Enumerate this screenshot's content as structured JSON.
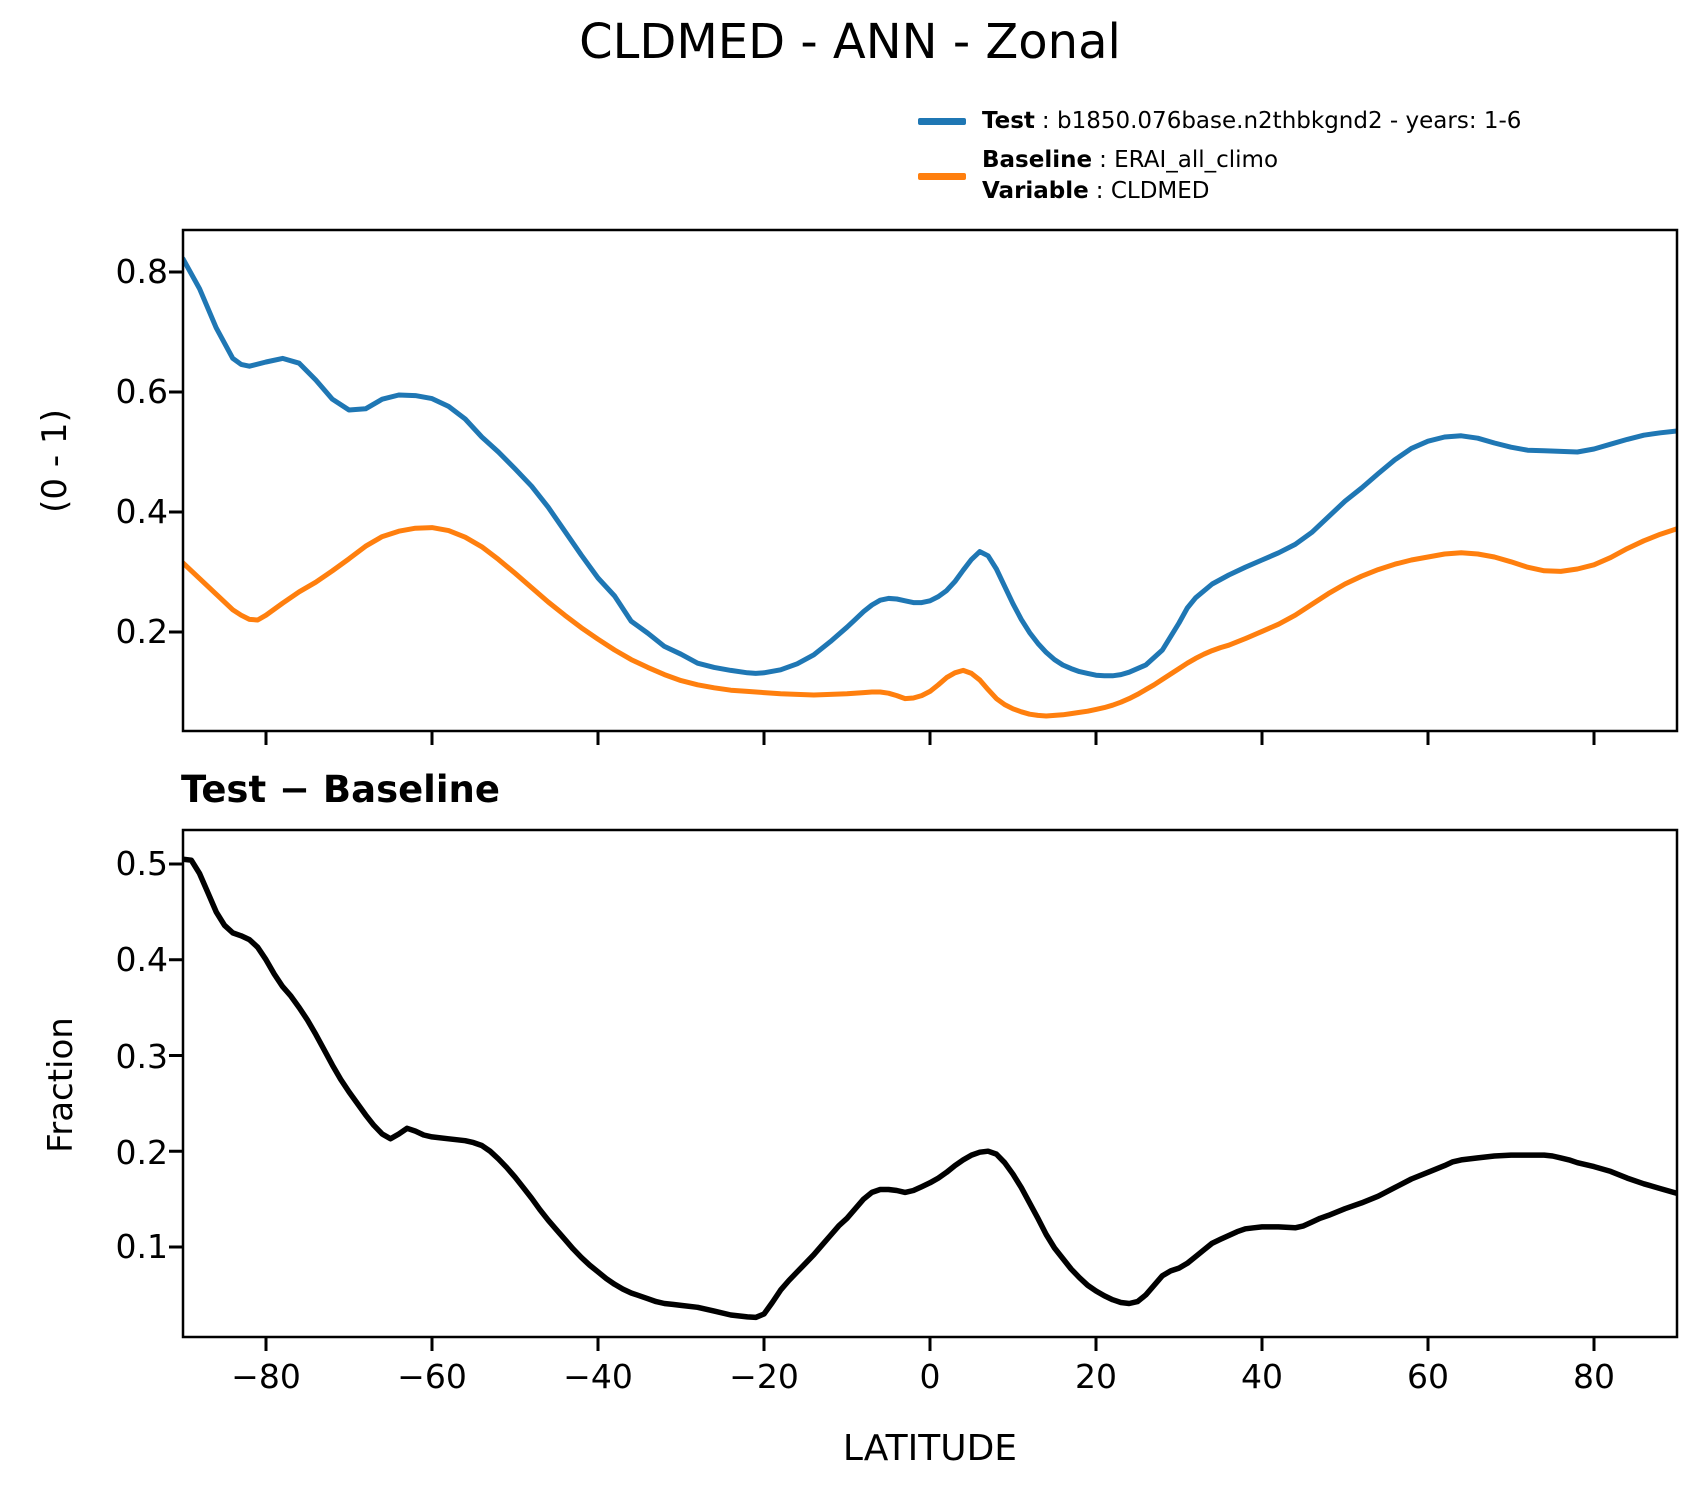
{
  "title": "CLDMED - ANN - Zonal",
  "legend": {
    "test": {
      "key": "Test",
      "value": ": b1850.076base.n2thbkgnd2 - years: 1-6"
    },
    "baseline": {
      "key": "Baseline",
      "value": ": ERAI_all_climo"
    },
    "variable": {
      "key": "Variable",
      "value": ": CLDMED"
    }
  },
  "subtitle": "Test − Baseline",
  "axis_text": {
    "top_ylabel": "(0 - 1)",
    "bottom_ylabel": "Fraction",
    "xlabel": "LATITUDE",
    "top_yticks": [
      "0.8",
      "0.6",
      "0.4",
      "0.2"
    ],
    "bottom_yticks": [
      "0.5",
      "0.4",
      "0.3",
      "0.2",
      "0.1"
    ],
    "xticks": [
      "−80",
      "−60",
      "−40",
      "−20",
      "0",
      "20",
      "40",
      "60",
      "80"
    ]
  },
  "colors": {
    "test": "#1f77b4",
    "baseline": "#ff7f0e",
    "difference": "#000000"
  },
  "chart_data": [
    {
      "type": "line",
      "title": "CLDMED - ANN - Zonal",
      "xlabel": "LATITUDE",
      "ylabel": "(0 - 1)",
      "xlim": [
        -90,
        90
      ],
      "ylim": [
        0.035,
        0.87
      ],
      "xticks": [
        -80,
        -60,
        -40,
        -20,
        0,
        20,
        40,
        60,
        80
      ],
      "yticks": [
        0.2,
        0.4,
        0.6,
        0.8
      ],
      "grid": false,
      "legend_position": "upper right outside",
      "series": [
        {
          "name": "Test",
          "label": "b1850.076base.n2thbkgnd2 - years: 1-6",
          "color": "#1f77b4",
          "x": [
            -90,
            -88,
            -86,
            -84,
            -83,
            -82,
            -80,
            -78,
            -76,
            -74,
            -72,
            -70,
            -68,
            -66,
            -64,
            -62,
            -60,
            -58,
            -56,
            -54,
            -52,
            -50,
            -48,
            -46,
            -44,
            -42,
            -40,
            -38,
            -36,
            -34,
            -32,
            -30,
            -28,
            -26,
            -24,
            -22,
            -21,
            -20,
            -18,
            -16,
            -14,
            -12,
            -10,
            -9,
            -8,
            -7,
            -6,
            -5,
            -4,
            -3,
            -2,
            -1,
            0,
            1,
            2,
            3,
            4,
            5,
            6,
            7,
            8,
            9,
            10,
            11,
            12,
            13,
            14,
            15,
            16,
            17,
            18,
            19,
            20,
            21,
            22,
            23,
            24,
            26,
            28,
            30,
            31,
            32,
            34,
            36,
            38,
            40,
            42,
            44,
            46,
            48,
            50,
            52,
            54,
            56,
            58,
            60,
            62,
            64,
            66,
            68,
            70,
            72,
            74,
            76,
            78,
            80,
            82,
            84,
            86,
            88,
            90
          ],
          "y": [
            0.822,
            0.772,
            0.707,
            0.656,
            0.646,
            0.643,
            0.65,
            0.656,
            0.648,
            0.62,
            0.588,
            0.57,
            0.572,
            0.588,
            0.595,
            0.594,
            0.589,
            0.576,
            0.555,
            0.525,
            0.5,
            0.472,
            0.443,
            0.408,
            0.368,
            0.328,
            0.29,
            0.26,
            0.218,
            0.198,
            0.176,
            0.163,
            0.148,
            0.141,
            0.136,
            0.132,
            0.131,
            0.132,
            0.137,
            0.147,
            0.162,
            0.184,
            0.208,
            0.221,
            0.234,
            0.245,
            0.253,
            0.256,
            0.255,
            0.252,
            0.249,
            0.249,
            0.252,
            0.259,
            0.269,
            0.284,
            0.303,
            0.321,
            0.334,
            0.327,
            0.305,
            0.276,
            0.247,
            0.221,
            0.199,
            0.181,
            0.166,
            0.154,
            0.145,
            0.139,
            0.134,
            0.131,
            0.128,
            0.127,
            0.127,
            0.129,
            0.133,
            0.145,
            0.17,
            0.215,
            0.24,
            0.257,
            0.28,
            0.295,
            0.308,
            0.32,
            0.332,
            0.346,
            0.366,
            0.392,
            0.418,
            0.44,
            0.464,
            0.487,
            0.506,
            0.518,
            0.525,
            0.527,
            0.523,
            0.515,
            0.508,
            0.503,
            0.502,
            0.501,
            0.5,
            0.505,
            0.513,
            0.521,
            0.528,
            0.532,
            0.535
          ]
        },
        {
          "name": "Baseline",
          "label": "ERAI_all_climo",
          "color": "#ff7f0e",
          "x": [
            -90,
            -88,
            -86,
            -84,
            -83,
            -82,
            -81,
            -80,
            -78,
            -76,
            -74,
            -72,
            -70,
            -68,
            -66,
            -64,
            -62,
            -60,
            -58,
            -56,
            -54,
            -52,
            -50,
            -48,
            -46,
            -44,
            -42,
            -40,
            -38,
            -36,
            -34,
            -32,
            -30,
            -28,
            -26,
            -24,
            -22,
            -20,
            -18,
            -16,
            -14,
            -12,
            -10,
            -8,
            -7,
            -6,
            -5,
            -4,
            -3,
            -2,
            -1,
            0,
            1,
            2,
            3,
            4,
            5,
            6,
            7,
            8,
            9,
            10,
            11,
            12,
            13,
            14,
            15,
            16,
            17,
            18,
            19,
            20,
            21,
            22,
            23,
            24,
            25,
            26,
            27,
            28,
            29,
            30,
            31,
            32,
            33,
            34,
            35,
            36,
            38,
            40,
            42,
            44,
            46,
            48,
            50,
            52,
            54,
            56,
            58,
            60,
            62,
            64,
            66,
            68,
            70,
            72,
            74,
            76,
            78,
            80,
            82,
            84,
            86,
            88,
            90
          ],
          "y": [
            0.315,
            0.289,
            0.263,
            0.237,
            0.228,
            0.221,
            0.22,
            0.228,
            0.248,
            0.267,
            0.283,
            0.302,
            0.322,
            0.343,
            0.359,
            0.368,
            0.373,
            0.374,
            0.369,
            0.358,
            0.342,
            0.321,
            0.298,
            0.274,
            0.25,
            0.228,
            0.207,
            0.188,
            0.17,
            0.154,
            0.141,
            0.129,
            0.119,
            0.112,
            0.107,
            0.103,
            0.101,
            0.099,
            0.097,
            0.096,
            0.095,
            0.096,
            0.097,
            0.099,
            0.1,
            0.1,
            0.098,
            0.094,
            0.089,
            0.09,
            0.094,
            0.101,
            0.112,
            0.124,
            0.132,
            0.136,
            0.131,
            0.12,
            0.104,
            0.089,
            0.079,
            0.072,
            0.067,
            0.063,
            0.061,
            0.06,
            0.061,
            0.062,
            0.064,
            0.066,
            0.068,
            0.071,
            0.074,
            0.078,
            0.083,
            0.089,
            0.096,
            0.104,
            0.112,
            0.121,
            0.13,
            0.139,
            0.148,
            0.156,
            0.163,
            0.169,
            0.174,
            0.178,
            0.189,
            0.201,
            0.213,
            0.228,
            0.246,
            0.264,
            0.28,
            0.293,
            0.304,
            0.313,
            0.32,
            0.325,
            0.33,
            0.332,
            0.33,
            0.325,
            0.317,
            0.308,
            0.302,
            0.301,
            0.305,
            0.312,
            0.324,
            0.339,
            0.352,
            0.363,
            0.372
          ]
        }
      ]
    },
    {
      "type": "line",
      "title": "Test − Baseline",
      "xlabel": "LATITUDE",
      "ylabel": "Fraction",
      "xlim": [
        -90,
        90
      ],
      "ylim": [
        0.006,
        0.5355
      ],
      "xticks": [
        -80,
        -60,
        -40,
        -20,
        0,
        20,
        40,
        60,
        80
      ],
      "yticks": [
        0.1,
        0.2,
        0.3,
        0.4,
        0.5
      ],
      "grid": false,
      "series": [
        {
          "name": "Test minus Baseline",
          "color": "#000000",
          "x": [
            -90,
            -89,
            -88,
            -87,
            -86,
            -85,
            -84,
            -83,
            -82,
            -81,
            -80,
            -79,
            -78,
            -77,
            -76,
            -75,
            -74,
            -73,
            -72,
            -71,
            -70,
            -69,
            -68,
            -67,
            -66,
            -65,
            -64,
            -63,
            -62,
            -61,
            -60,
            -58,
            -56,
            -55,
            -54,
            -53,
            -52,
            -51,
            -50,
            -49,
            -48,
            -47,
            -46,
            -45,
            -44,
            -43,
            -42,
            -41,
            -40,
            -39,
            -38,
            -37,
            -36,
            -35,
            -34,
            -33,
            -32,
            -31,
            -30,
            -28,
            -26,
            -24,
            -22,
            -21,
            -20,
            -19,
            -18,
            -17,
            -16,
            -15,
            -14,
            -13,
            -12,
            -11,
            -10,
            -9,
            -8,
            -7,
            -6,
            -5,
            -4,
            -3,
            -2,
            -1,
            0,
            1,
            2,
            3,
            4,
            5,
            6,
            7,
            8,
            9,
            10,
            11,
            12,
            13,
            14,
            15,
            16,
            17,
            18,
            19,
            20,
            21,
            22,
            23,
            24,
            25,
            26,
            27,
            28,
            29,
            30,
            31,
            32,
            33,
            34,
            35,
            36,
            37,
            38,
            39,
            40,
            42,
            44,
            45,
            46,
            47,
            48,
            50,
            52,
            54,
            56,
            58,
            60,
            62,
            63,
            64,
            66,
            68,
            70,
            72,
            74,
            75,
            76,
            77,
            78,
            80,
            82,
            84,
            86,
            88,
            90
          ],
          "y": [
            0.505,
            0.504,
            0.49,
            0.47,
            0.45,
            0.436,
            0.428,
            0.425,
            0.421,
            0.413,
            0.4,
            0.385,
            0.372,
            0.362,
            0.35,
            0.337,
            0.322,
            0.306,
            0.29,
            0.275,
            0.262,
            0.25,
            0.238,
            0.227,
            0.218,
            0.213,
            0.218,
            0.224,
            0.221,
            0.217,
            0.215,
            0.213,
            0.211,
            0.209,
            0.206,
            0.2,
            0.192,
            0.183,
            0.173,
            0.162,
            0.151,
            0.139,
            0.128,
            0.118,
            0.108,
            0.098,
            0.089,
            0.081,
            0.074,
            0.067,
            0.061,
            0.056,
            0.052,
            0.049,
            0.046,
            0.043,
            0.041,
            0.04,
            0.039,
            0.037,
            0.033,
            0.029,
            0.027,
            0.0265,
            0.03,
            0.042,
            0.055,
            0.065,
            0.074,
            0.083,
            0.092,
            0.102,
            0.112,
            0.122,
            0.13,
            0.14,
            0.15,
            0.157,
            0.16,
            0.16,
            0.159,
            0.157,
            0.159,
            0.163,
            0.167,
            0.172,
            0.178,
            0.185,
            0.191,
            0.196,
            0.199,
            0.2,
            0.197,
            0.188,
            0.176,
            0.162,
            0.146,
            0.13,
            0.113,
            0.099,
            0.088,
            0.077,
            0.068,
            0.06,
            0.054,
            0.049,
            0.045,
            0.042,
            0.041,
            0.043,
            0.05,
            0.06,
            0.07,
            0.075,
            0.078,
            0.083,
            0.09,
            0.097,
            0.104,
            0.108,
            0.112,
            0.116,
            0.119,
            0.12,
            0.121,
            0.121,
            0.12,
            0.122,
            0.126,
            0.13,
            0.133,
            0.14,
            0.146,
            0.153,
            0.162,
            0.171,
            0.178,
            0.185,
            0.189,
            0.191,
            0.193,
            0.195,
            0.196,
            0.196,
            0.196,
            0.195,
            0.193,
            0.191,
            0.188,
            0.184,
            0.179,
            0.172,
            0.166,
            0.161,
            0.156
          ]
        }
      ]
    }
  ]
}
